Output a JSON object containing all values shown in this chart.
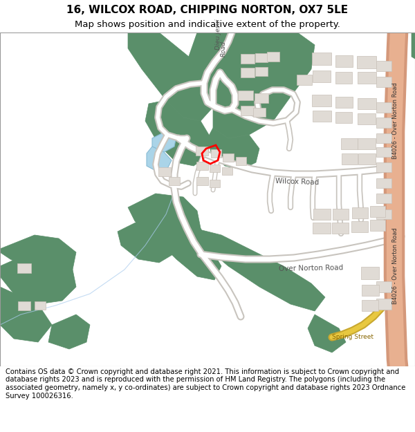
{
  "title": "16, WILCOX ROAD, CHIPPING NORTON, OX7 5LE",
  "subtitle": "Map shows position and indicative extent of the property.",
  "footer": "Contains OS data © Crown copyright and database right 2021. This information is subject to Crown copyright and database rights 2023 and is reproduced with the permission of HM Land Registry. The polygons (including the associated geometry, namely x, y co-ordinates) are subject to Crown copyright and database rights 2023 Ordnance Survey 100026316.",
  "bg_color": "#ffffff",
  "map_bg": "#ffffff",
  "green_color": "#5a8f6a",
  "road_color": "#ffffff",
  "road_stroke": "#d0ccc8",
  "building_color": "#e0dbd5",
  "building_stroke": "#c8c0b8",
  "water_color": "#aad4e8",
  "red_property": "#ff0000",
  "b4026_color": "#e8b090",
  "road_label_color": "#555555",
  "blue_line_color": "#aaccee",
  "title_fontsize": 11,
  "subtitle_fontsize": 9.5,
  "footer_fontsize": 7.2
}
